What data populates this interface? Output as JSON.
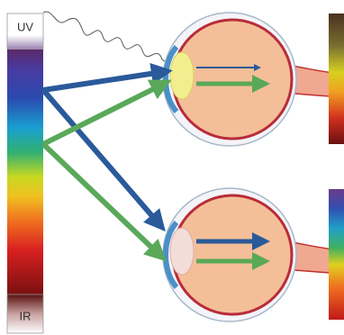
{
  "labels": {
    "uv": "UV",
    "ir": "IR"
  }
}
